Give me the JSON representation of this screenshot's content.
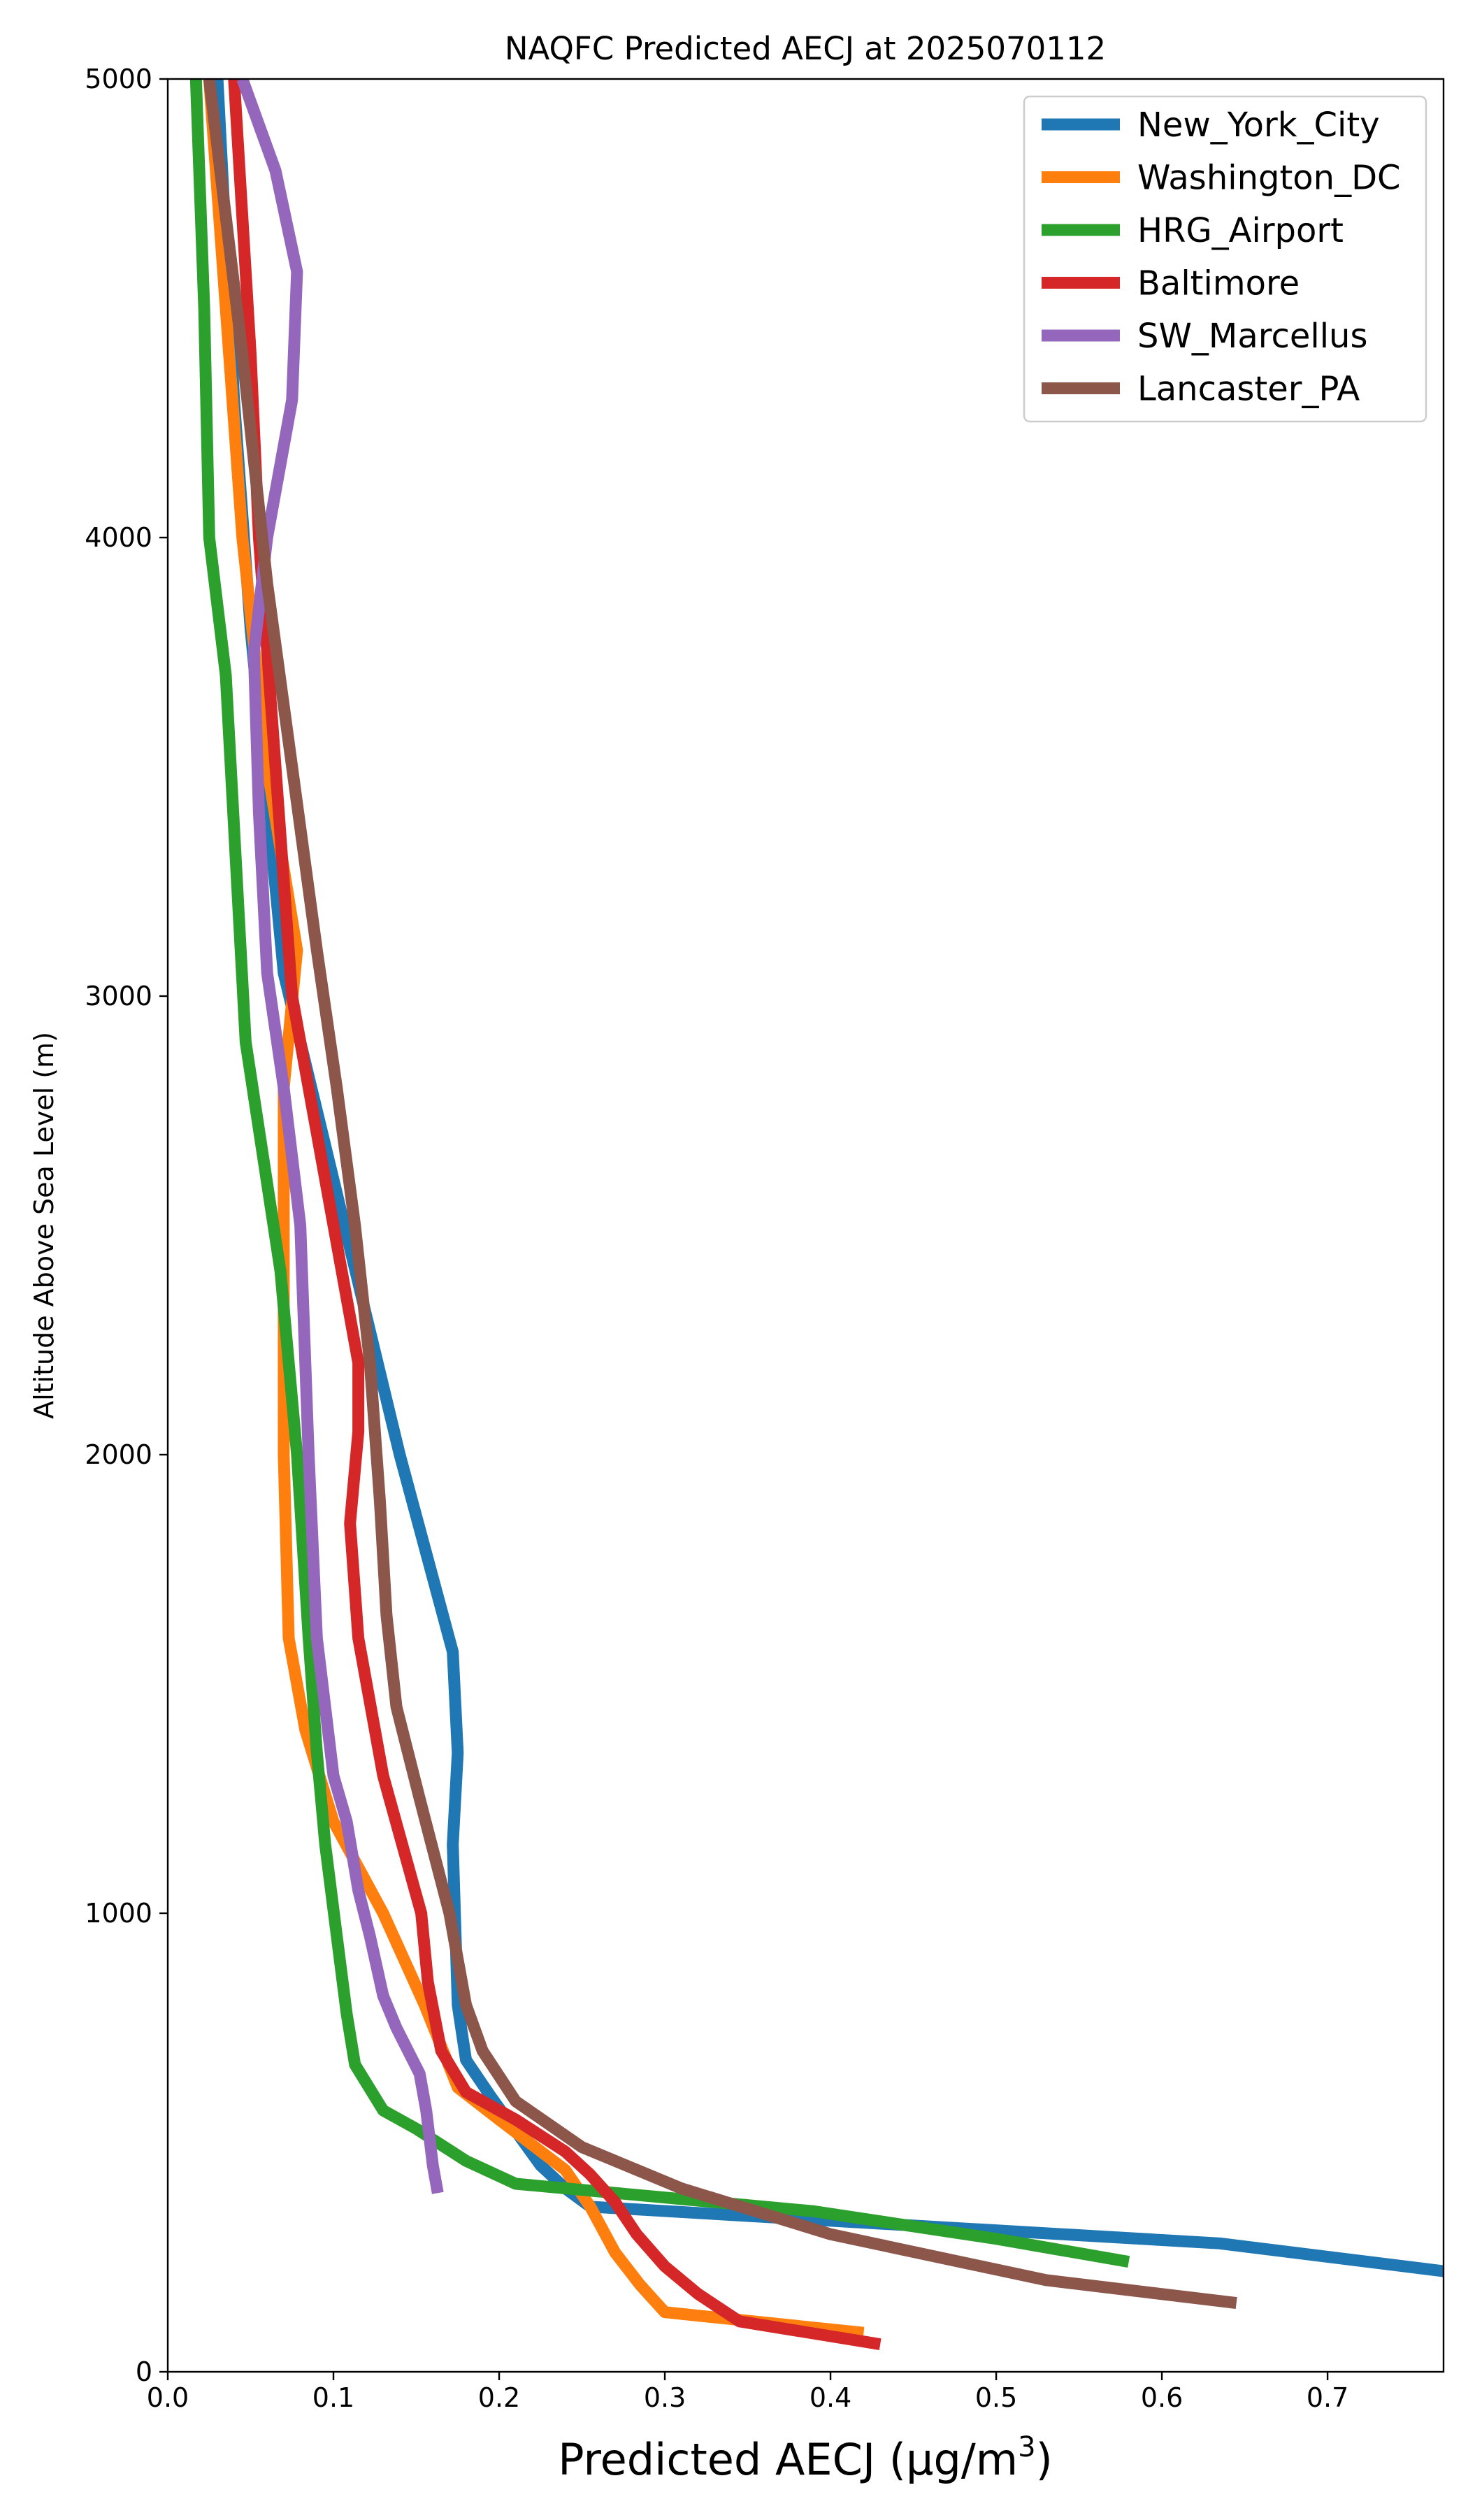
{
  "chart_data": {
    "type": "line",
    "title": "NAQFC Predicted AECJ at 2025070112",
    "xlabel": "Predicted AECJ (μg/m",
    "xlabel_sup": "3",
    "xlabel_close": ")",
    "ylabel": "Altitude Above Sea Level (m)",
    "xlim": [
      0.0,
      0.77
    ],
    "ylim": [
      0,
      5000
    ],
    "xticks": [
      0.0,
      0.1,
      0.2,
      0.3,
      0.4,
      0.5,
      0.6,
      0.7
    ],
    "xtick_labels": [
      "0.0",
      "0.1",
      "0.2",
      "0.3",
      "0.4",
      "0.5",
      "0.6",
      "0.7"
    ],
    "yticks": [
      0,
      1000,
      2000,
      3000,
      4000,
      5000
    ],
    "ytick_labels": [
      "0",
      "1000",
      "2000",
      "3000",
      "4000",
      "5000"
    ],
    "grid": false,
    "legend_position": "top-right",
    "series": [
      {
        "name": "New_York_City",
        "color": "#1f77b4",
        "points": [
          [
            0.78,
            215
          ],
          [
            0.635,
            280
          ],
          [
            0.35,
            340
          ],
          [
            0.255,
            360
          ],
          [
            0.24,
            400
          ],
          [
            0.225,
            450
          ],
          [
            0.195,
            600
          ],
          [
            0.18,
            680
          ],
          [
            0.175,
            800
          ],
          [
            0.172,
            1150
          ],
          [
            0.175,
            1350
          ],
          [
            0.172,
            1570
          ],
          [
            0.14,
            2000
          ],
          [
            0.12,
            2300
          ],
          [
            0.07,
            3050
          ],
          [
            0.05,
            3800
          ],
          [
            0.04,
            4300
          ],
          [
            0.03,
            5000
          ]
        ]
      },
      {
        "name": "Washington_DC",
        "color": "#ff7f0e",
        "points": [
          [
            0.42,
            85
          ],
          [
            0.3,
            130
          ],
          [
            0.285,
            190
          ],
          [
            0.27,
            260
          ],
          [
            0.255,
            360
          ],
          [
            0.24,
            440
          ],
          [
            0.2,
            550
          ],
          [
            0.175,
            620
          ],
          [
            0.155,
            800
          ],
          [
            0.13,
            1000
          ],
          [
            0.1,
            1200
          ],
          [
            0.083,
            1400
          ],
          [
            0.073,
            1600
          ],
          [
            0.07,
            2000
          ],
          [
            0.07,
            2500
          ],
          [
            0.07,
            2800
          ],
          [
            0.078,
            3100
          ],
          [
            0.06,
            3500
          ],
          [
            0.045,
            4000
          ],
          [
            0.035,
            4500
          ],
          [
            0.025,
            5000
          ]
        ]
      },
      {
        "name": "HRG_Airport",
        "color": "#2ca02c",
        "points": [
          [
            0.58,
            240
          ],
          [
            0.5,
            290
          ],
          [
            0.39,
            350
          ],
          [
            0.3,
            380
          ],
          [
            0.21,
            410
          ],
          [
            0.18,
            460
          ],
          [
            0.15,
            530
          ],
          [
            0.13,
            570
          ],
          [
            0.113,
            670
          ],
          [
            0.108,
            780
          ],
          [
            0.102,
            950
          ],
          [
            0.095,
            1150
          ],
          [
            0.09,
            1350
          ],
          [
            0.085,
            1600
          ],
          [
            0.078,
            2000
          ],
          [
            0.068,
            2400
          ],
          [
            0.047,
            2900
          ],
          [
            0.035,
            3700
          ],
          [
            0.025,
            4000
          ],
          [
            0.022,
            4500
          ],
          [
            0.017,
            5000
          ]
        ]
      },
      {
        "name": "Baltimore",
        "color": "#d62728",
        "points": [
          [
            0.43,
            60
          ],
          [
            0.345,
            110
          ],
          [
            0.32,
            170
          ],
          [
            0.3,
            230
          ],
          [
            0.283,
            300
          ],
          [
            0.27,
            370
          ],
          [
            0.255,
            430
          ],
          [
            0.24,
            480
          ],
          [
            0.21,
            550
          ],
          [
            0.18,
            610
          ],
          [
            0.165,
            700
          ],
          [
            0.157,
            850
          ],
          [
            0.153,
            1000
          ],
          [
            0.13,
            1300
          ],
          [
            0.115,
            1600
          ],
          [
            0.11,
            1850
          ],
          [
            0.115,
            2050
          ],
          [
            0.115,
            2200
          ],
          [
            0.105,
            2400
          ],
          [
            0.085,
            2800
          ],
          [
            0.075,
            3000
          ],
          [
            0.065,
            3500
          ],
          [
            0.055,
            4000
          ],
          [
            0.05,
            4400
          ],
          [
            0.04,
            5000
          ]
        ]
      },
      {
        "name": "SW_Marcellus",
        "color": "#9467bd",
        "points": [
          [
            0.163,
            390
          ],
          [
            0.16,
            450
          ],
          [
            0.156,
            570
          ],
          [
            0.152,
            650
          ],
          [
            0.138,
            750
          ],
          [
            0.13,
            820
          ],
          [
            0.122,
            950
          ],
          [
            0.115,
            1050
          ],
          [
            0.108,
            1200
          ],
          [
            0.1,
            1300
          ],
          [
            0.09,
            1600
          ],
          [
            0.085,
            2000
          ],
          [
            0.08,
            2500
          ],
          [
            0.07,
            2800
          ],
          [
            0.06,
            3050
          ],
          [
            0.055,
            3400
          ],
          [
            0.052,
            3750
          ],
          [
            0.06,
            4000
          ],
          [
            0.075,
            4300
          ],
          [
            0.078,
            4580
          ],
          [
            0.065,
            4800
          ],
          [
            0.045,
            5000
          ]
        ]
      },
      {
        "name": "Lancaster_PA",
        "color": "#8c564b",
        "points": [
          [
            0.645,
            150
          ],
          [
            0.53,
            200
          ],
          [
            0.4,
            300
          ],
          [
            0.31,
            400
          ],
          [
            0.25,
            490
          ],
          [
            0.21,
            590
          ],
          [
            0.19,
            700
          ],
          [
            0.18,
            800
          ],
          [
            0.17,
            1000
          ],
          [
            0.152,
            1250
          ],
          [
            0.138,
            1450
          ],
          [
            0.132,
            1650
          ],
          [
            0.128,
            1900
          ],
          [
            0.122,
            2200
          ],
          [
            0.113,
            2500
          ],
          [
            0.102,
            2800
          ],
          [
            0.09,
            3100
          ],
          [
            0.075,
            3500
          ],
          [
            0.06,
            3900
          ],
          [
            0.045,
            4400
          ],
          [
            0.035,
            4700
          ],
          [
            0.025,
            5000
          ]
        ]
      }
    ]
  }
}
